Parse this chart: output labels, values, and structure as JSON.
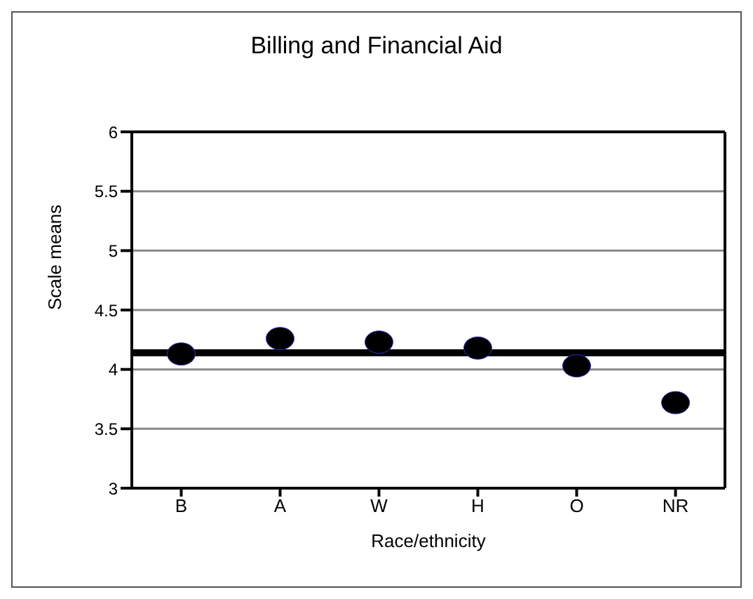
{
  "chart_data": {
    "type": "scatter",
    "title": "Billing and Financial Aid",
    "xlabel": "Race/ethnicity",
    "ylabel": "Scale means",
    "categories": [
      "B",
      "A",
      "W",
      "H",
      "O",
      "NR"
    ],
    "series": [
      {
        "color": "#000000",
        "values": [
          4.13,
          4.26,
          4.23,
          4.18,
          4.03,
          3.72
        ]
      }
    ],
    "ylim": [
      3,
      6
    ],
    "yticks": [
      3,
      3.5,
      4,
      4.5,
      5,
      5.5,
      6
    ],
    "grid": "y",
    "marker": "circle",
    "ref_lines": [
      {
        "axis": "y",
        "value": 4.14,
        "color": "#000000"
      }
    ]
  }
}
